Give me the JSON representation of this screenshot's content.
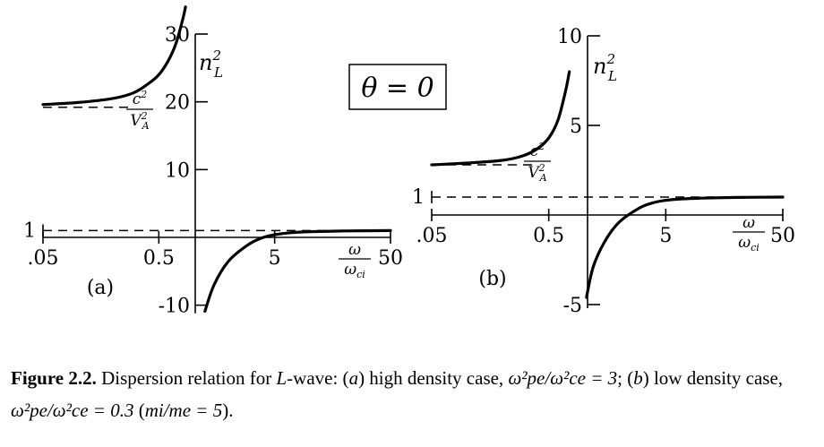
{
  "chart_data": [
    {
      "type": "line",
      "panel_label": "(a)",
      "x_scale": "log",
      "x_ticks": [
        ".05",
        "0.5",
        "5",
        "50"
      ],
      "x_tick_values": [
        0.05,
        0.5,
        5,
        50
      ],
      "y_ticks": [
        "30",
        "20",
        "10",
        "1",
        "-10"
      ],
      "y_tick_values": [
        30,
        20,
        10,
        1,
        -10
      ],
      "ylim": [
        -11.2,
        30
      ],
      "ylabel": "n_L^2",
      "xlabel": "ω/ω_ci",
      "asymptote_label": "c²/V_A²",
      "series": [
        {
          "branch": "low",
          "x": [
            0.05,
            0.1,
            0.2,
            0.3,
            0.4,
            0.5,
            0.6,
            0.7,
            0.8,
            0.85
          ],
          "y": [
            19.6,
            19.9,
            20.5,
            21.3,
            22.6,
            24.0,
            26.0,
            28.5,
            32.0,
            34.0
          ]
        },
        {
          "branch": "high",
          "x": [
            1.25,
            1.5,
            2,
            3,
            4,
            5,
            7,
            10,
            20,
            50
          ],
          "y": [
            -10.9,
            -7.0,
            -3.5,
            -1.0,
            0.0,
            0.4,
            0.7,
            0.85,
            0.95,
            1.0
          ]
        }
      ],
      "dashed_lines": [
        {
          "x_start": 0.05,
          "x_end": 0.3,
          "y": 19.2
        },
        {
          "x_start": 0.05,
          "x_end": 50,
          "y": 1
        }
      ]
    },
    {
      "type": "line",
      "panel_label": "(b)",
      "x_scale": "log",
      "x_ticks": [
        ".05",
        "0.5",
        "5",
        "50"
      ],
      "x_tick_values": [
        0.05,
        0.5,
        5,
        50
      ],
      "y_ticks": [
        "10",
        "5",
        "1",
        "-5"
      ],
      "y_tick_values": [
        10,
        5,
        1,
        -5
      ],
      "ylim": [
        -5.2,
        10
      ],
      "ylabel": "n_L^2",
      "xlabel": "ω/ω_ci",
      "asymptote_label": "c²/V_A²",
      "series": [
        {
          "branch": "low",
          "x": [
            0.05,
            0.1,
            0.2,
            0.3,
            0.4,
            0.5,
            0.6,
            0.7,
            0.75
          ],
          "y": [
            2.8,
            2.9,
            3.05,
            3.3,
            3.7,
            4.3,
            5.3,
            7.0,
            8.0
          ]
        },
        {
          "branch": "high",
          "x": [
            1.05,
            1.2,
            1.5,
            2,
            3,
            4,
            5,
            7,
            10,
            20,
            50
          ],
          "y": [
            -4.6,
            -2.9,
            -1.5,
            -0.4,
            0.4,
            0.7,
            0.82,
            0.9,
            0.94,
            0.98,
            1.0
          ]
        }
      ],
      "dashed_lines": [
        {
          "x_start": 0.05,
          "x_end": 0.4,
          "y": 2.8
        },
        {
          "x_start": 0.05,
          "x_end": 50,
          "y": 1
        }
      ]
    }
  ],
  "equation_box": "θ = 0",
  "caption": {
    "label": "Figure 2.2.",
    "text_1": " Dispersion relation for ",
    "wave": "L",
    "text_2": "-wave: (",
    "case_a": "a",
    "text_3": ") high density case, ",
    "ratio_a": "ω²pe/ω²ce = 3",
    "text_4": "; (",
    "case_b": "b",
    "text_5": ") low density case, ",
    "ratio_b": "ω²pe/ω²ce = 0.3",
    "text_6": " (",
    "mass_ratio": "mi/me = 5",
    "text_7": ")."
  }
}
